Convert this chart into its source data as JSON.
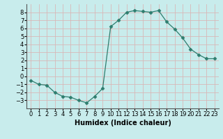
{
  "x": [
    0,
    1,
    2,
    3,
    4,
    5,
    6,
    7,
    8,
    9,
    10,
    11,
    12,
    13,
    14,
    15,
    16,
    17,
    18,
    19,
    20,
    21,
    22,
    23
  ],
  "y": [
    -0.5,
    -1.0,
    -1.1,
    -2.0,
    -2.5,
    -2.6,
    -3.0,
    -3.3,
    -2.5,
    -1.5,
    6.2,
    7.0,
    8.0,
    8.2,
    8.1,
    8.0,
    8.2,
    6.8,
    5.9,
    4.8,
    3.4,
    2.7,
    2.2,
    2.2
  ],
  "line_color": "#2e7d6e",
  "marker": "D",
  "marker_size": 2.5,
  "bg_color": "#c8ecec",
  "grid_color": "#d8b8b8",
  "xlabel": "Humidex (Indice chaleur)",
  "xlim": [
    -0.5,
    23.5
  ],
  "ylim": [
    -4,
    9
  ],
  "yticks": [
    -3,
    -2,
    -1,
    0,
    1,
    2,
    3,
    4,
    5,
    6,
    7,
    8
  ],
  "xticks": [
    0,
    1,
    2,
    3,
    4,
    5,
    6,
    7,
    8,
    9,
    10,
    11,
    12,
    13,
    14,
    15,
    16,
    17,
    18,
    19,
    20,
    21,
    22,
    23
  ],
  "xlabel_fontsize": 7,
  "tick_fontsize_x": 6,
  "tick_fontsize_y": 6
}
